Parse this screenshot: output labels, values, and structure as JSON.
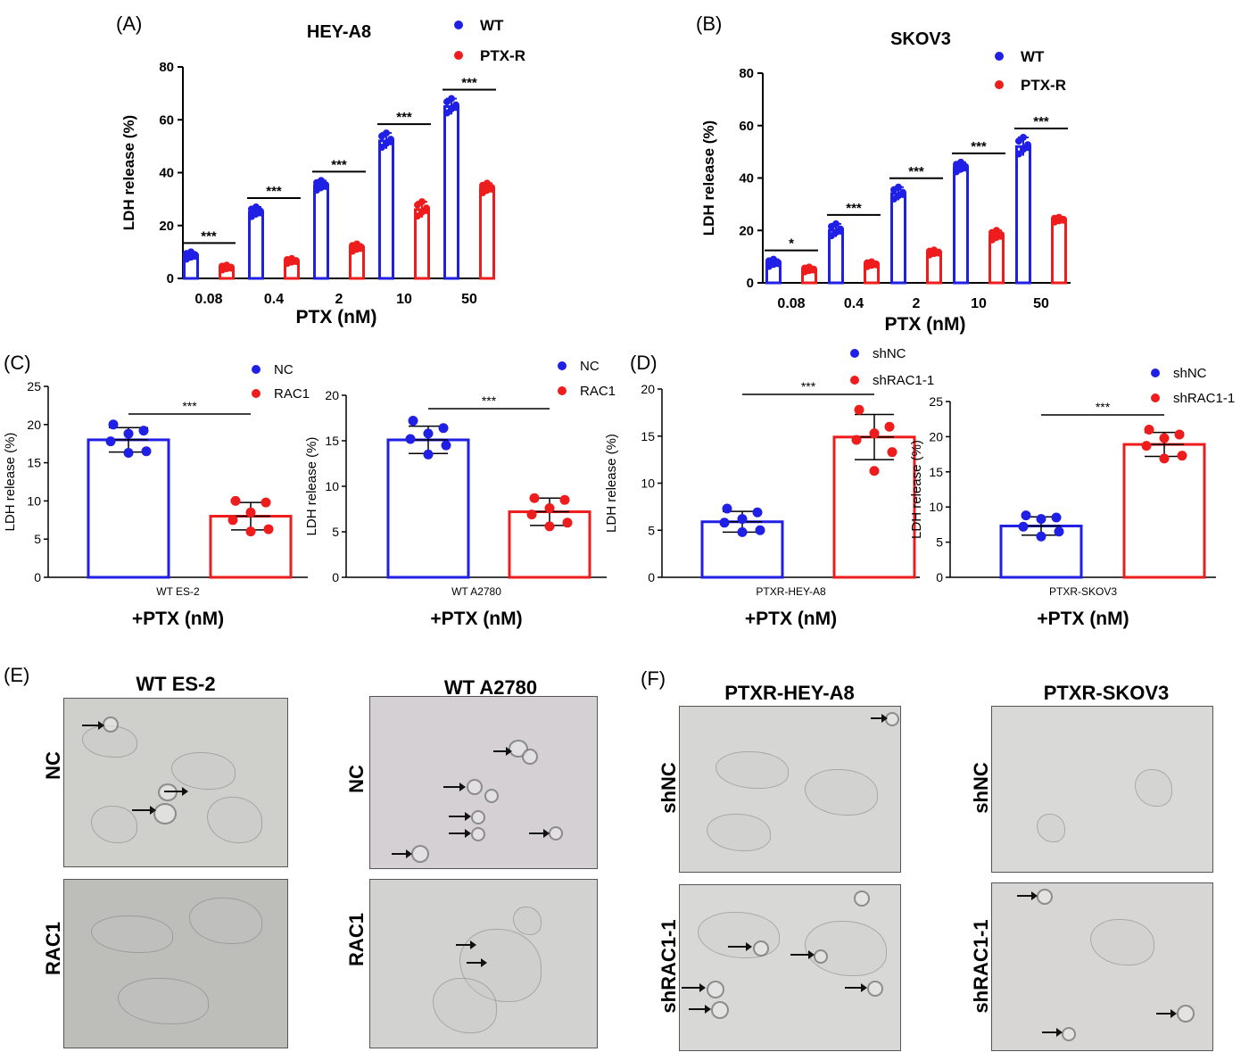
{
  "panels": {
    "A": "(A)",
    "B": "(B)",
    "C": "(C)",
    "D": "(D)",
    "E": "(E)",
    "F": "(F)"
  },
  "sig": {
    "three": "***",
    "one": "*"
  },
  "colors": {
    "blue": "#1f1fe6",
    "red": "#ee1c1c"
  },
  "micro": {
    "E": {
      "left_title": "WT ES-2",
      "right_title": "WT A2780",
      "rows": [
        "NC",
        "RAC1"
      ]
    },
    "F": {
      "left_title": "PTXR-HEY-A8",
      "right_title": "PTXR-SKOV3",
      "rows": [
        "shNC",
        "shRAC1-1"
      ]
    }
  },
  "chart_data": [
    {
      "id": "A",
      "type": "bar",
      "title": "HEY-A8",
      "xlabel": "PTX (nM)",
      "ylabel": "LDH release  (%)",
      "categories": [
        "0.08",
        "0.4",
        "2",
        "10",
        "50"
      ],
      "ylim": [
        0,
        80
      ],
      "yticks": [
        0,
        20,
        40,
        60,
        80
      ],
      "series": [
        {
          "name": "WT",
          "color": "#1f1fe6",
          "values": [
            8.5,
            25,
            35,
            52,
            65
          ],
          "error": [
            1.5,
            2,
            2,
            3,
            3
          ]
        },
        {
          "name": "PTX-R",
          "color": "#ee1c1c",
          "values": [
            4,
            6.5,
            11.5,
            26,
            34
          ],
          "error": [
            1,
            1,
            1.5,
            3,
            2
          ]
        }
      ],
      "significance": [
        "***",
        "***",
        "***",
        "***",
        "***"
      ],
      "legend": "top-right"
    },
    {
      "id": "B",
      "type": "bar",
      "title": "SKOV3",
      "xlabel": "PTX (nM)",
      "ylabel": "LDH release  (%)",
      "categories": [
        "0.08",
        "0.4",
        "2",
        "10",
        "50"
      ],
      "ylim": [
        0,
        80
      ],
      "yticks": [
        0,
        20,
        40,
        60,
        80
      ],
      "series": [
        {
          "name": "WT",
          "color": "#1f1fe6",
          "values": [
            7.5,
            20,
            34,
            44,
            52
          ],
          "error": [
            1.5,
            2.5,
            2.5,
            2,
            3.5
          ]
        },
        {
          "name": "PTX-R",
          "color": "#ee1c1c",
          "values": [
            5,
            7,
            11.5,
            18,
            24
          ],
          "error": [
            1,
            1,
            1,
            2,
            1
          ]
        }
      ],
      "significance": [
        "*",
        "***",
        "***",
        "***",
        "***"
      ],
      "legend": "top-right"
    },
    {
      "id": "C1",
      "type": "bar",
      "xlabel": "+PTX (nM)",
      "ylabel": "LDH release  (%)",
      "categories": [
        "WT ES-2"
      ],
      "ylim": [
        0,
        25
      ],
      "yticks": [
        0,
        5,
        10,
        15,
        20,
        25
      ],
      "series": [
        {
          "name": "NC",
          "color": "#1f1fe6",
          "values": [
            18
          ],
          "error": [
            1.6
          ],
          "points": [
            20,
            19.2,
            18.8,
            17.8,
            16.5,
            16.3
          ]
        },
        {
          "name": "RAC1",
          "color": "#ee1c1c",
          "values": [
            8
          ],
          "error": [
            1.8
          ],
          "points": [
            10,
            9.8,
            8.5,
            7.5,
            6.3,
            6
          ]
        }
      ],
      "significance": "***",
      "legend": "top-right"
    },
    {
      "id": "C2",
      "type": "bar",
      "xlabel": "+PTX (nM)",
      "ylabel": "LDH release  (%)",
      "categories": [
        "WT A2780"
      ],
      "ylim": [
        0,
        20
      ],
      "yticks": [
        0,
        5,
        10,
        15,
        20
      ],
      "series": [
        {
          "name": "NC",
          "color": "#1f1fe6",
          "values": [
            15.1
          ],
          "error": [
            1.5
          ],
          "points": [
            17.2,
            16.4,
            15.8,
            15.2,
            14.5,
            13.5
          ]
        },
        {
          "name": "RAC1",
          "color": "#ee1c1c",
          "values": [
            7.2
          ],
          "error": [
            1.5
          ],
          "points": [
            8.7,
            8.5,
            7.6,
            6.9,
            6,
            5.6
          ]
        }
      ],
      "significance": "***",
      "legend": "top-right"
    },
    {
      "id": "D1",
      "type": "bar",
      "xlabel": "+PTX (nM)",
      "ylabel": "LDH release  (%)",
      "categories": [
        "PTXR-HEY-A8"
      ],
      "ylim": [
        0,
        20
      ],
      "yticks": [
        0,
        5,
        10,
        15,
        20
      ],
      "series": [
        {
          "name": "shNC",
          "color": "#1f1fe6",
          "values": [
            5.9
          ],
          "error": [
            1.1
          ],
          "points": [
            7.3,
            6.9,
            6.2,
            5.8,
            5,
            4.8
          ]
        },
        {
          "name": "shRAC1-1",
          "color": "#ee1c1c",
          "values": [
            14.9
          ],
          "error": [
            2.4
          ],
          "points": [
            17.8,
            16,
            15.3,
            14.6,
            13.3,
            11.3
          ]
        }
      ],
      "significance": "***",
      "legend": "top-right"
    },
    {
      "id": "D2",
      "type": "bar",
      "xlabel": "+PTX (nM)",
      "ylabel": "LDH release  (%)",
      "categories": [
        "PTXR-SKOV3"
      ],
      "ylim": [
        0,
        25
      ],
      "yticks": [
        0,
        5,
        10,
        15,
        20,
        25
      ],
      "series": [
        {
          "name": "shNC",
          "color": "#1f1fe6",
          "values": [
            7.3
          ],
          "error": [
            1.3
          ],
          "points": [
            8.8,
            8.5,
            8.3,
            7.2,
            6.5,
            5.8
          ]
        },
        {
          "name": "shRAC1-1",
          "color": "#ee1c1c",
          "values": [
            18.9
          ],
          "error": [
            1.7
          ],
          "points": [
            21,
            20.3,
            19.8,
            18.7,
            17.3,
            16.9
          ]
        }
      ],
      "significance": "***",
      "legend": "top-right"
    }
  ]
}
